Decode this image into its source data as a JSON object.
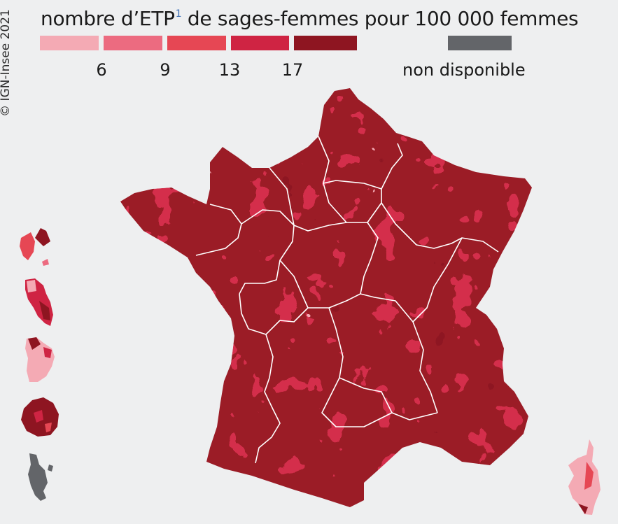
{
  "copyright": "© IGN-Insee 2021",
  "legend": {
    "title_prefix": "nombre d’ETP",
    "title_footnote": "1",
    "title_suffix": " de sages-femmes pour 100 000 femmes",
    "classes": [
      {
        "color": "#f4aab4"
      },
      {
        "color": "#ec6b80"
      },
      {
        "color": "#e64754"
      },
      {
        "color": "#cf2443"
      },
      {
        "color": "#8e1521"
      }
    ],
    "thresholds": [
      "6",
      "9",
      "13",
      "17"
    ],
    "na_color": "#636569",
    "na_label": "non disponible"
  },
  "map": {
    "territories": [
      "metropolitan-france",
      "corsica",
      "guadeloupe",
      "martinique",
      "guyane",
      "la-reunion",
      "mayotte"
    ],
    "region_boundary_color": "#ffffff"
  }
}
